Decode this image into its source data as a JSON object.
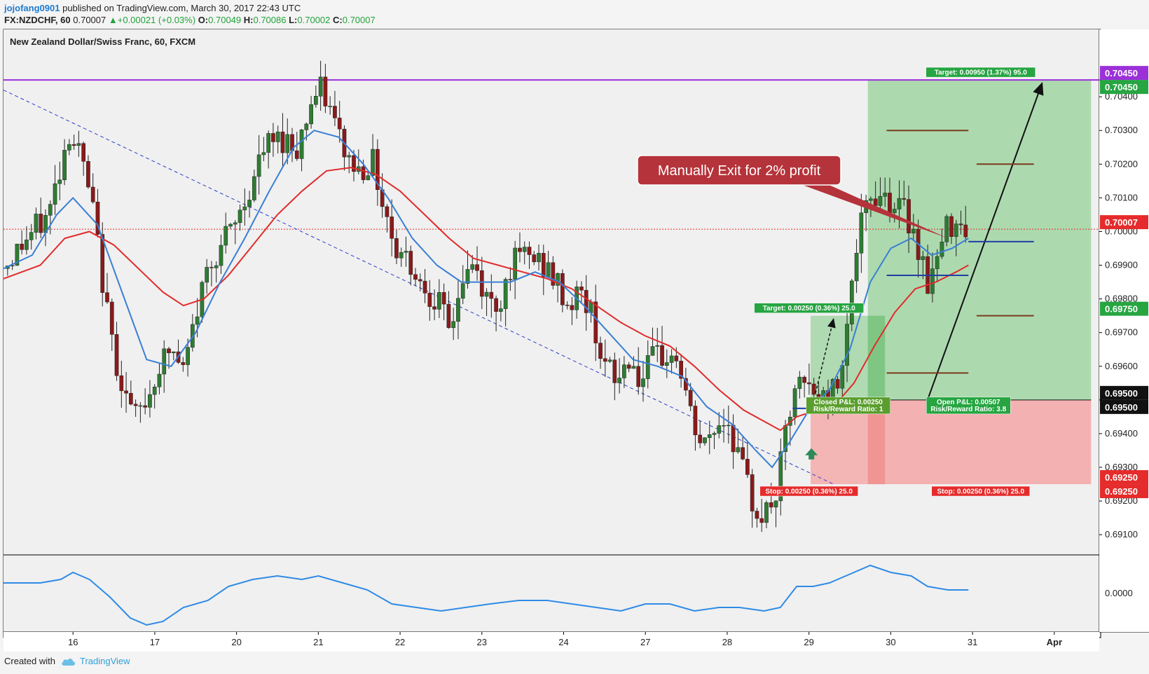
{
  "header": {
    "username": "jojofang0901",
    "published": "published on TradingView.com, March 30, 2017 22:43 UTC",
    "symbol": "FX:NZDCHF, 60",
    "last": "0.70007",
    "change": "▲+0.00021 (+0.03%)",
    "o_label": "O:",
    "o_value": "0.70049",
    "h_label": "H:",
    "h_value": "0.70086",
    "l_label": "L:",
    "l_value": "0.70002",
    "c_label": "C:",
    "c_value": "0.70007"
  },
  "footer": {
    "created_with": "Created with",
    "brand": "TradingView"
  },
  "colors": {
    "up": "#2e7d32",
    "down": "#8b1a1a",
    "ema_fast": "#3a7fd5",
    "ema_slow": "#e12b2b",
    "resistance": "#9b30d9",
    "profit_zone": "#a5d6a7",
    "loss_zone": "#f4aaaa",
    "label_green": "#26a541",
    "label_red": "#e52b2b",
    "annotation": "#b5333a"
  },
  "chart_data": {
    "type": "candlestick",
    "title": "New Zealand Dollar/Swiss Franc, 60, FXCM",
    "ylim": [
      0.6904,
      0.706
    ],
    "xlim": [
      -0.85,
      12.55
    ],
    "y_ticks": [
      "0.70450",
      "0.70400",
      "0.70300",
      "0.70200",
      "0.70100",
      "0.70000",
      "0.69900",
      "0.69800",
      "0.69700",
      "0.69600",
      "0.69500",
      "0.69400",
      "0.69300",
      "0.69200",
      "0.69100"
    ],
    "y_tick_values": [
      0.7045,
      0.704,
      0.703,
      0.702,
      0.701,
      0.7,
      0.699,
      0.698,
      0.697,
      0.696,
      0.695,
      0.694,
      0.693,
      0.692,
      0.691
    ],
    "x_ticks": [
      {
        "label": "16",
        "x": 0
      },
      {
        "label": "17",
        "x": 1
      },
      {
        "label": "20",
        "x": 2
      },
      {
        "label": "21",
        "x": 3
      },
      {
        "label": "22",
        "x": 4
      },
      {
        "label": "23",
        "x": 5
      },
      {
        "label": "24",
        "x": 6
      },
      {
        "label": "27",
        "x": 7
      },
      {
        "label": "28",
        "x": 8
      },
      {
        "label": "29",
        "x": 9
      },
      {
        "label": "30",
        "x": 10
      },
      {
        "label": "31",
        "x": 11
      },
      {
        "label": "Apr",
        "x": 12
      }
    ],
    "price_path": [
      [
        -0.85,
        0.6989
      ],
      [
        -0.6,
        0.6997
      ],
      [
        -0.3,
        0.7005
      ],
      [
        -0.05,
        0.703
      ],
      [
        0.1,
        0.7022
      ],
      [
        0.25,
        0.7005
      ],
      [
        0.45,
        0.697
      ],
      [
        0.6,
        0.6955
      ],
      [
        0.75,
        0.6944
      ],
      [
        0.9,
        0.695
      ],
      [
        1.05,
        0.696
      ],
      [
        1.2,
        0.6965
      ],
      [
        1.35,
        0.6958
      ],
      [
        1.5,
        0.6975
      ],
      [
        1.65,
        0.699
      ],
      [
        1.8,
        0.6996
      ],
      [
        1.95,
        0.7
      ],
      [
        2.15,
        0.7012
      ],
      [
        2.35,
        0.7025
      ],
      [
        2.55,
        0.7028
      ],
      [
        2.75,
        0.7025
      ],
      [
        2.9,
        0.7038
      ],
      [
        3.05,
        0.7042
      ],
      [
        3.2,
        0.7032
      ],
      [
        3.35,
        0.7022
      ],
      [
        3.5,
        0.7018
      ],
      [
        3.65,
        0.7022
      ],
      [
        3.8,
        0.7008
      ],
      [
        3.95,
        0.6995
      ],
      [
        4.1,
        0.6992
      ],
      [
        4.25,
        0.6985
      ],
      [
        4.45,
        0.698
      ],
      [
        4.6,
        0.697
      ],
      [
        4.75,
        0.6985
      ],
      [
        4.9,
        0.699
      ],
      [
        5.05,
        0.698
      ],
      [
        5.2,
        0.6978
      ],
      [
        5.35,
        0.699
      ],
      [
        5.55,
        0.6993
      ],
      [
        5.75,
        0.699
      ],
      [
        5.9,
        0.6985
      ],
      [
        6.05,
        0.6978
      ],
      [
        6.2,
        0.6982
      ],
      [
        6.35,
        0.6975
      ],
      [
        6.5,
        0.696
      ],
      [
        6.65,
        0.6955
      ],
      [
        6.8,
        0.6963
      ],
      [
        6.95,
        0.6955
      ],
      [
        7.1,
        0.6962
      ],
      [
        7.25,
        0.6963
      ],
      [
        7.4,
        0.6962
      ],
      [
        7.55,
        0.6945
      ],
      [
        7.7,
        0.6935
      ],
      [
        7.85,
        0.6942
      ],
      [
        8.0,
        0.6945
      ],
      [
        8.15,
        0.6932
      ],
      [
        8.3,
        0.692
      ],
      [
        8.45,
        0.6915
      ],
      [
        8.6,
        0.6922
      ],
      [
        8.75,
        0.6945
      ],
      [
        8.9,
        0.6955
      ],
      [
        9.05,
        0.6952
      ],
      [
        9.2,
        0.695
      ],
      [
        9.35,
        0.6955
      ],
      [
        9.5,
        0.698
      ],
      [
        9.6,
        0.6998
      ],
      [
        9.75,
        0.701
      ],
      [
        9.9,
        0.7012
      ],
      [
        10.05,
        0.7008
      ],
      [
        10.2,
        0.7005
      ],
      [
        10.35,
        0.6995
      ],
      [
        10.45,
        0.6985
      ],
      [
        10.55,
        0.699
      ],
      [
        10.7,
        0.7002
      ],
      [
        10.85,
        0.7005
      ],
      [
        10.95,
        0.7
      ]
    ],
    "ema_fast_path": [
      [
        -0.85,
        0.6989
      ],
      [
        -0.5,
        0.6993
      ],
      [
        -0.2,
        0.7005
      ],
      [
        0.0,
        0.701
      ],
      [
        0.3,
        0.7002
      ],
      [
        0.6,
        0.6982
      ],
      [
        0.9,
        0.6962
      ],
      [
        1.2,
        0.696
      ],
      [
        1.5,
        0.697
      ],
      [
        1.8,
        0.6985
      ],
      [
        2.1,
        0.6998
      ],
      [
        2.4,
        0.7012
      ],
      [
        2.7,
        0.7025
      ],
      [
        2.95,
        0.703
      ],
      [
        3.25,
        0.7028
      ],
      [
        3.55,
        0.702
      ],
      [
        3.85,
        0.701
      ],
      [
        4.15,
        0.6998
      ],
      [
        4.45,
        0.699
      ],
      [
        4.75,
        0.6985
      ],
      [
        5.05,
        0.6985
      ],
      [
        5.35,
        0.6985
      ],
      [
        5.65,
        0.6988
      ],
      [
        5.95,
        0.6985
      ],
      [
        6.25,
        0.6978
      ],
      [
        6.55,
        0.697
      ],
      [
        6.85,
        0.6962
      ],
      [
        7.15,
        0.696
      ],
      [
        7.45,
        0.6957
      ],
      [
        7.75,
        0.6948
      ],
      [
        8.05,
        0.6943
      ],
      [
        8.35,
        0.6935
      ],
      [
        8.55,
        0.693
      ],
      [
        8.75,
        0.6937
      ],
      [
        9.0,
        0.6947
      ],
      [
        9.25,
        0.6953
      ],
      [
        9.5,
        0.6965
      ],
      [
        9.75,
        0.6985
      ],
      [
        10.0,
        0.6995
      ],
      [
        10.25,
        0.6998
      ],
      [
        10.5,
        0.6993
      ],
      [
        10.75,
        0.6995
      ],
      [
        10.95,
        0.6998
      ]
    ],
    "ema_slow_path": [
      [
        -0.85,
        0.6986
      ],
      [
        -0.4,
        0.699
      ],
      [
        -0.1,
        0.6998
      ],
      [
        0.2,
        0.7
      ],
      [
        0.5,
        0.6996
      ],
      [
        0.8,
        0.6989
      ],
      [
        1.1,
        0.6982
      ],
      [
        1.35,
        0.6978
      ],
      [
        1.6,
        0.698
      ],
      [
        1.9,
        0.6987
      ],
      [
        2.2,
        0.6996
      ],
      [
        2.5,
        0.7005
      ],
      [
        2.8,
        0.7012
      ],
      [
        3.1,
        0.7018
      ],
      [
        3.4,
        0.7019
      ],
      [
        3.7,
        0.7017
      ],
      [
        4.0,
        0.7012
      ],
      [
        4.3,
        0.7005
      ],
      [
        4.6,
        0.6998
      ],
      [
        4.9,
        0.6992
      ],
      [
        5.2,
        0.699
      ],
      [
        5.5,
        0.6988
      ],
      [
        5.8,
        0.6986
      ],
      [
        6.1,
        0.6983
      ],
      [
        6.4,
        0.6978
      ],
      [
        6.7,
        0.6973
      ],
      [
        7.0,
        0.6969
      ],
      [
        7.3,
        0.6966
      ],
      [
        7.6,
        0.696
      ],
      [
        7.9,
        0.6953
      ],
      [
        8.2,
        0.6947
      ],
      [
        8.5,
        0.6943
      ],
      [
        8.65,
        0.6941
      ],
      [
        8.85,
        0.6945
      ],
      [
        9.1,
        0.6947
      ],
      [
        9.3,
        0.6948
      ],
      [
        9.55,
        0.6955
      ],
      [
        9.8,
        0.6966
      ],
      [
        10.05,
        0.6976
      ],
      [
        10.3,
        0.6983
      ],
      [
        10.55,
        0.6985
      ],
      [
        10.8,
        0.6988
      ],
      [
        10.95,
        0.699
      ]
    ],
    "price_line": 0.70007,
    "resistance": 0.7045,
    "trendline": {
      "from": [
        -0.85,
        0.7042
      ],
      "to": [
        9.3,
        0.6925
      ]
    },
    "positions": [
      {
        "x_start": 9.02,
        "x_end": 9.93,
        "entry": 0.695,
        "target": 0.6975,
        "stop": 0.6925,
        "target_label": "Target: 0.00250 (0.36%) 25.0",
        "stop_label": "Stop: 0.00250 (0.36%) 25.0",
        "pnl_label": "Closed P&L: 0.00250",
        "rr_label": "Risk/Reward Ratio: 1"
      },
      {
        "x_start": 9.72,
        "x_end": 12.45,
        "entry": 0.695,
        "target": 0.7045,
        "stop": 0.6925,
        "target_label": "Target: 0.00950 (1.37%) 95.0",
        "stop_label": "Stop: 0.00250 (0.36%) 25.0",
        "pnl_label": "Open P&L: 0.00507",
        "rr_label": "Risk/Reward Ratio: 3.8"
      }
    ],
    "price_badges": [
      {
        "value": 0.7045,
        "text": "0.70450",
        "color": "#9b30d9"
      },
      {
        "value": 0.7045,
        "text": "0.70450",
        "color": "#26a541"
      },
      {
        "value": 0.70007,
        "text": "0.70007",
        "color": "#e52b2b"
      },
      {
        "value": 0.6975,
        "text": "0.69750",
        "color": "#26a541"
      },
      {
        "value": 0.695,
        "text": "0.69500",
        "color": "#111111"
      },
      {
        "value": 0.695,
        "text": "0.69500",
        "color": "#111111"
      },
      {
        "value": 0.6925,
        "text": "0.69250",
        "color": "#e52b2b"
      },
      {
        "value": 0.6925,
        "text": "0.69250",
        "color": "#e52b2b"
      }
    ],
    "annotation": "Manually Exit for 2% profit",
    "oscillator": {
      "y_tick": "0.0000",
      "ylim": [
        -0.0011,
        0.0011
      ],
      "path": [
        [
          -0.85,
          0.0003
        ],
        [
          -0.4,
          0.0003
        ],
        [
          -0.15,
          0.0004
        ],
        [
          0.0,
          0.0006
        ],
        [
          0.2,
          0.0004
        ],
        [
          0.45,
          -0.0001
        ],
        [
          0.7,
          -0.0007
        ],
        [
          0.9,
          -0.0009
        ],
        [
          1.1,
          -0.0008
        ],
        [
          1.35,
          -0.0004
        ],
        [
          1.65,
          -0.0002
        ],
        [
          1.9,
          0.0002
        ],
        [
          2.2,
          0.0004
        ],
        [
          2.5,
          0.0005
        ],
        [
          2.8,
          0.0004
        ],
        [
          3.0,
          0.0005
        ],
        [
          3.3,
          0.0003
        ],
        [
          3.6,
          0.0001
        ],
        [
          3.9,
          -0.0003
        ],
        [
          4.2,
          -0.0004
        ],
        [
          4.5,
          -0.0005
        ],
        [
          4.8,
          -0.0004
        ],
        [
          5.1,
          -0.0003
        ],
        [
          5.45,
          -0.0002
        ],
        [
          5.8,
          -0.0002
        ],
        [
          6.1,
          -0.0003
        ],
        [
          6.4,
          -0.0004
        ],
        [
          6.7,
          -0.0005
        ],
        [
          7.0,
          -0.0003
        ],
        [
          7.3,
          -0.0003
        ],
        [
          7.6,
          -0.0005
        ],
        [
          7.9,
          -0.0004
        ],
        [
          8.15,
          -0.0004
        ],
        [
          8.45,
          -0.0005
        ],
        [
          8.65,
          -0.0004
        ],
        [
          8.85,
          0.0002
        ],
        [
          9.05,
          0.0002
        ],
        [
          9.25,
          0.0003
        ],
        [
          9.45,
          0.0005
        ],
        [
          9.75,
          0.0008
        ],
        [
          10.0,
          0.0006
        ],
        [
          10.25,
          0.0005
        ],
        [
          10.45,
          0.0002
        ],
        [
          10.7,
          0.0001
        ],
        [
          10.95,
          0.0001
        ]
      ]
    }
  }
}
